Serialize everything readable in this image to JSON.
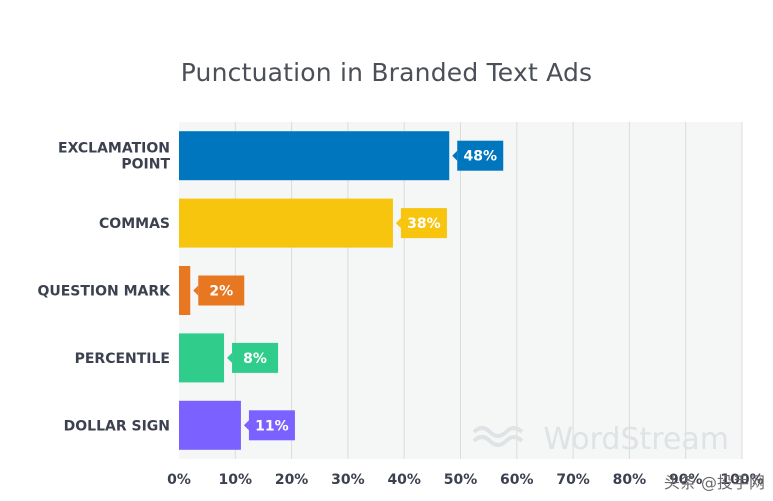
{
  "chart_data": {
    "type": "bar",
    "orientation": "horizontal",
    "title": "Punctuation in Branded Text Ads",
    "xlabel": "",
    "ylabel": "",
    "categories": [
      "EXCLAMATION POINT",
      "COMMAS",
      "QUESTION MARK",
      "PERCENTILE",
      "DOLLAR SIGN"
    ],
    "values": [
      48,
      38,
      2,
      8,
      11
    ],
    "value_labels": [
      "48%",
      "38%",
      "2%",
      "8%",
      "11%"
    ],
    "bar_colors": [
      "#0076bf",
      "#f7c40e",
      "#e87722",
      "#2fcc8b",
      "#7b61ff"
    ],
    "xlim": [
      0,
      100
    ],
    "x_ticks": [
      "0%",
      "10%",
      "20%",
      "30%",
      "40%",
      "50%",
      "60%",
      "70%",
      "80%",
      "90%",
      "100%"
    ],
    "grid": true,
    "legend": "none"
  },
  "watermark": {
    "brand": "WordStream",
    "overlay": "头条 @投手网"
  },
  "colors": {
    "plot_background": "#f5f6f6",
    "grid": "#dcdcdc",
    "axis_text": "#3c4150",
    "title": "#4b4f58"
  }
}
